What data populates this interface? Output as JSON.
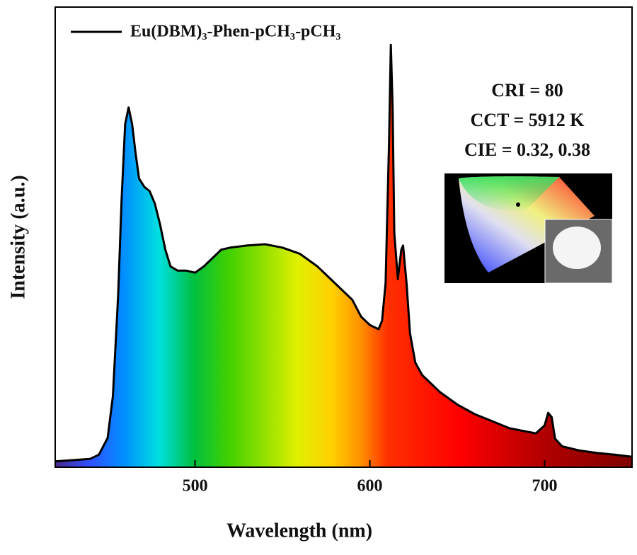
{
  "chart_data": {
    "type": "line",
    "xlabel": "Wavelength (nm)",
    "ylabel": "Intensity (a.u.)",
    "xlim": [
      420,
      750
    ],
    "xticks": [
      500,
      600,
      700
    ],
    "ylim": [
      0,
      1.1
    ],
    "annotations": [
      "CRI = 80",
      "CCT = 5912 K",
      "CIE = 0.32, 0.38"
    ],
    "legend": "top-left",
    "x": [
      420,
      430,
      440,
      445,
      450,
      453,
      456,
      458,
      460,
      462,
      464,
      466,
      468,
      471,
      474,
      477,
      480,
      483,
      486,
      490,
      495,
      500,
      505,
      510,
      515,
      520,
      530,
      540,
      550,
      560,
      570,
      580,
      590,
      595,
      600,
      605,
      607,
      609,
      611,
      612,
      613,
      614,
      616,
      618,
      619,
      621,
      623,
      626,
      630,
      640,
      650,
      660,
      670,
      680,
      690,
      695,
      700,
      702,
      704,
      706,
      710,
      720,
      730,
      740,
      750
    ],
    "series": [
      {
        "name": "Eu(DBM)₃-Phen-pCH₃-pCH₃",
        "color": "#000000",
        "values": [
          0.014,
          0.017,
          0.02,
          0.03,
          0.07,
          0.17,
          0.41,
          0.64,
          0.82,
          0.86,
          0.82,
          0.75,
          0.69,
          0.67,
          0.66,
          0.63,
          0.58,
          0.52,
          0.48,
          0.47,
          0.47,
          0.465,
          0.48,
          0.5,
          0.52,
          0.525,
          0.53,
          0.533,
          0.525,
          0.51,
          0.48,
          0.44,
          0.4,
          0.36,
          0.34,
          0.33,
          0.35,
          0.44,
          0.78,
          1.01,
          0.86,
          0.56,
          0.45,
          0.52,
          0.53,
          0.44,
          0.32,
          0.25,
          0.22,
          0.18,
          0.15,
          0.127,
          0.11,
          0.093,
          0.085,
          0.081,
          0.1,
          0.13,
          0.12,
          0.068,
          0.05,
          0.04,
          0.034,
          0.03,
          0.025
        ]
      }
    ]
  }
}
